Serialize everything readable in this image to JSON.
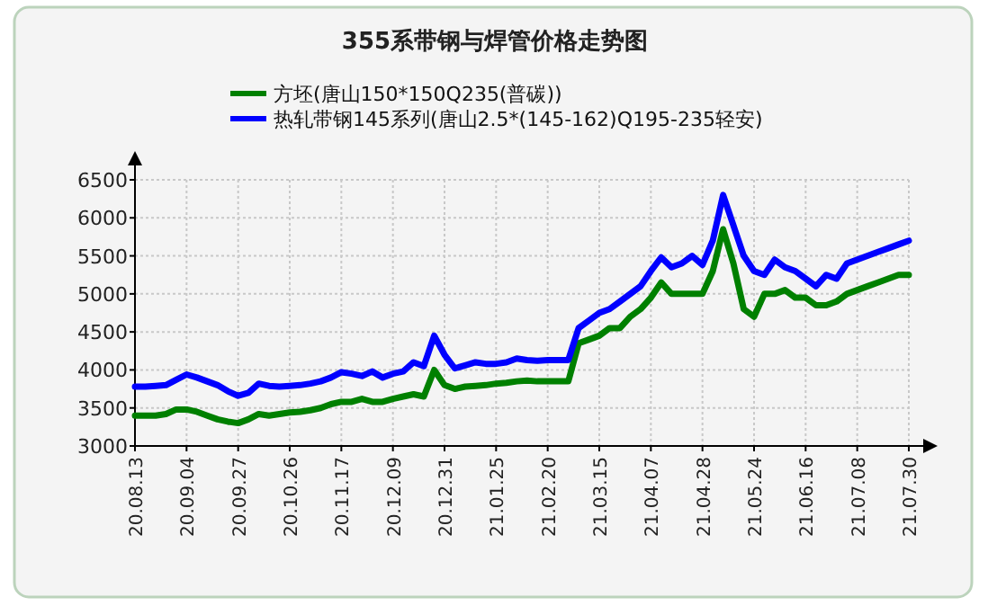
{
  "chart_data": {
    "type": "line",
    "title": "355系带钢与焊管价格走势图",
    "categories": [
      "20.08.13",
      null,
      null,
      null,
      null,
      "20.09.04",
      null,
      null,
      null,
      null,
      "20.09.27",
      null,
      null,
      null,
      null,
      "20.10.26",
      null,
      null,
      null,
      null,
      "20.11.17",
      null,
      null,
      null,
      null,
      "20.12.09",
      null,
      null,
      null,
      null,
      "20.12.31",
      null,
      null,
      null,
      null,
      "21.01.25",
      null,
      null,
      null,
      null,
      "21.02.20",
      null,
      null,
      null,
      null,
      "21.03.15",
      null,
      null,
      null,
      null,
      "21.04.07",
      null,
      null,
      null,
      null,
      "21.04.28",
      null,
      null,
      null,
      null,
      "21.05.24",
      null,
      null,
      null,
      null,
      "21.06.16",
      null,
      null,
      null,
      null,
      "21.07.08",
      null,
      null,
      null,
      null,
      "21.07.30"
    ],
    "series": [
      {
        "name": "方坯(唐山150*150Q235(普碳))",
        "color": "#008000",
        "values": [
          3400,
          3400,
          3400,
          3420,
          3480,
          3480,
          3450,
          3400,
          3350,
          3320,
          3300,
          3350,
          3420,
          3400,
          3420,
          3440,
          3450,
          3470,
          3500,
          3550,
          3580,
          3580,
          3620,
          3580,
          3580,
          3620,
          3650,
          3680,
          3650,
          4000,
          3800,
          3750,
          3780,
          3790,
          3800,
          3820,
          3830,
          3850,
          3860,
          3850,
          3850,
          3850,
          3850,
          4350,
          4400,
          4450,
          4550,
          4550,
          4700,
          4800,
          4950,
          5150,
          5000,
          5000,
          5000,
          5000,
          5300,
          5850,
          5400,
          4800,
          4700,
          5000,
          5000,
          5050,
          4950,
          4950,
          4850,
          4850,
          4900,
          5000,
          5050,
          5100,
          5150,
          5200,
          5250,
          5250
        ]
      },
      {
        "name": "热轧带钢145系列(唐山2.5*(145-162)Q195-235轻安)",
        "color": "#0000ff",
        "values": [
          3780,
          3780,
          3790,
          3800,
          3870,
          3940,
          3900,
          3850,
          3800,
          3720,
          3660,
          3700,
          3820,
          3790,
          3780,
          3790,
          3800,
          3820,
          3850,
          3900,
          3970,
          3950,
          3920,
          3980,
          3900,
          3950,
          3980,
          4100,
          4050,
          4450,
          4200,
          4020,
          4060,
          4100,
          4080,
          4080,
          4100,
          4150,
          4130,
          4120,
          4130,
          4130,
          4130,
          4550,
          4650,
          4750,
          4800,
          4900,
          5000,
          5100,
          5300,
          5480,
          5350,
          5400,
          5500,
          5380,
          5700,
          6300,
          5900,
          5500,
          5300,
          5250,
          5450,
          5350,
          5300,
          5200,
          5100,
          5250,
          5200,
          5400,
          5450,
          5500,
          5550,
          5600,
          5650,
          5700
        ]
      }
    ],
    "ylim": [
      3000,
      6500
    ],
    "yticks": [
      3000,
      3500,
      4000,
      4500,
      5000,
      5500,
      6000,
      6500
    ],
    "grid": true,
    "legend": "top"
  }
}
